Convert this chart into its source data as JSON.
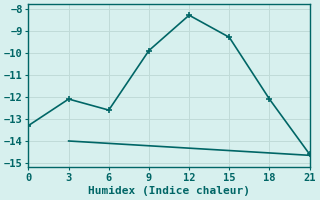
{
  "line1_x": [
    0,
    3,
    6,
    9,
    12,
    15,
    18,
    21
  ],
  "line1_y": [
    -13.3,
    -12.1,
    -12.6,
    -9.9,
    -8.3,
    -9.3,
    -12.1,
    -14.6
  ],
  "line2_x": [
    3,
    21
  ],
  "line2_y": [
    -14.0,
    -14.65
  ],
  "line_color": "#006666",
  "bg_color": "#d7f0ee",
  "grid_color": "#c0dbd8",
  "xlabel": "Humidex (Indice chaleur)",
  "xlim": [
    0,
    21
  ],
  "ylim": [
    -15.2,
    -7.8
  ],
  "xticks": [
    0,
    3,
    6,
    9,
    12,
    15,
    18,
    21
  ],
  "yticks": [
    -15,
    -14,
    -13,
    -12,
    -11,
    -10,
    -9,
    -8
  ],
  "marker": "+",
  "marker_size": 5,
  "line_width": 1.2,
  "tick_fontsize": 7.5,
  "xlabel_fontsize": 8
}
